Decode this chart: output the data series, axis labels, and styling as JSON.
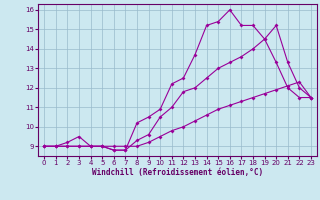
{
  "xlabel": "Windchill (Refroidissement éolien,°C)",
  "bg_color": "#cce8f0",
  "line_color": "#990099",
  "grid_color": "#99bbcc",
  "xlim": [
    -0.5,
    23.5
  ],
  "ylim": [
    8.5,
    16.3
  ],
  "xticks": [
    0,
    1,
    2,
    3,
    4,
    5,
    6,
    7,
    8,
    9,
    10,
    11,
    12,
    13,
    14,
    15,
    16,
    17,
    18,
    19,
    20,
    21,
    22,
    23
  ],
  "yticks": [
    9,
    10,
    11,
    12,
    13,
    14,
    15,
    16
  ],
  "curve1_x": [
    0,
    1,
    2,
    3,
    4,
    5,
    6,
    7,
    8,
    9,
    10,
    11,
    12,
    13,
    14,
    15,
    16,
    17,
    18,
    19,
    20,
    21,
    22,
    23
  ],
  "curve1_y": [
    9.0,
    9.0,
    9.2,
    9.5,
    9.0,
    9.0,
    8.8,
    8.8,
    10.2,
    10.5,
    10.9,
    12.2,
    12.5,
    13.7,
    15.2,
    15.4,
    16.0,
    15.2,
    15.2,
    14.5,
    13.3,
    12.0,
    11.5,
    11.5
  ],
  "curve2_x": [
    0,
    1,
    2,
    3,
    4,
    5,
    6,
    7,
    8,
    9,
    10,
    11,
    12,
    13,
    14,
    15,
    16,
    17,
    18,
    19,
    20,
    21,
    22,
    23
  ],
  "curve2_y": [
    9.0,
    9.0,
    9.0,
    9.0,
    9.0,
    9.0,
    8.8,
    8.8,
    9.3,
    9.6,
    10.5,
    11.0,
    11.8,
    12.0,
    12.5,
    13.0,
    13.3,
    13.6,
    14.0,
    14.5,
    15.2,
    13.3,
    12.0,
    11.5
  ],
  "curve3_x": [
    0,
    1,
    2,
    3,
    4,
    5,
    6,
    7,
    8,
    9,
    10,
    11,
    12,
    13,
    14,
    15,
    16,
    17,
    18,
    19,
    20,
    21,
    22,
    23
  ],
  "curve3_y": [
    9.0,
    9.0,
    9.0,
    9.0,
    9.0,
    9.0,
    9.0,
    9.0,
    9.0,
    9.2,
    9.5,
    9.8,
    10.0,
    10.3,
    10.6,
    10.9,
    11.1,
    11.3,
    11.5,
    11.7,
    11.9,
    12.1,
    12.3,
    11.5
  ],
  "xlabel_fontsize": 5.5,
  "tick_fontsize": 5,
  "label_color": "#660066",
  "spine_color": "#660066"
}
